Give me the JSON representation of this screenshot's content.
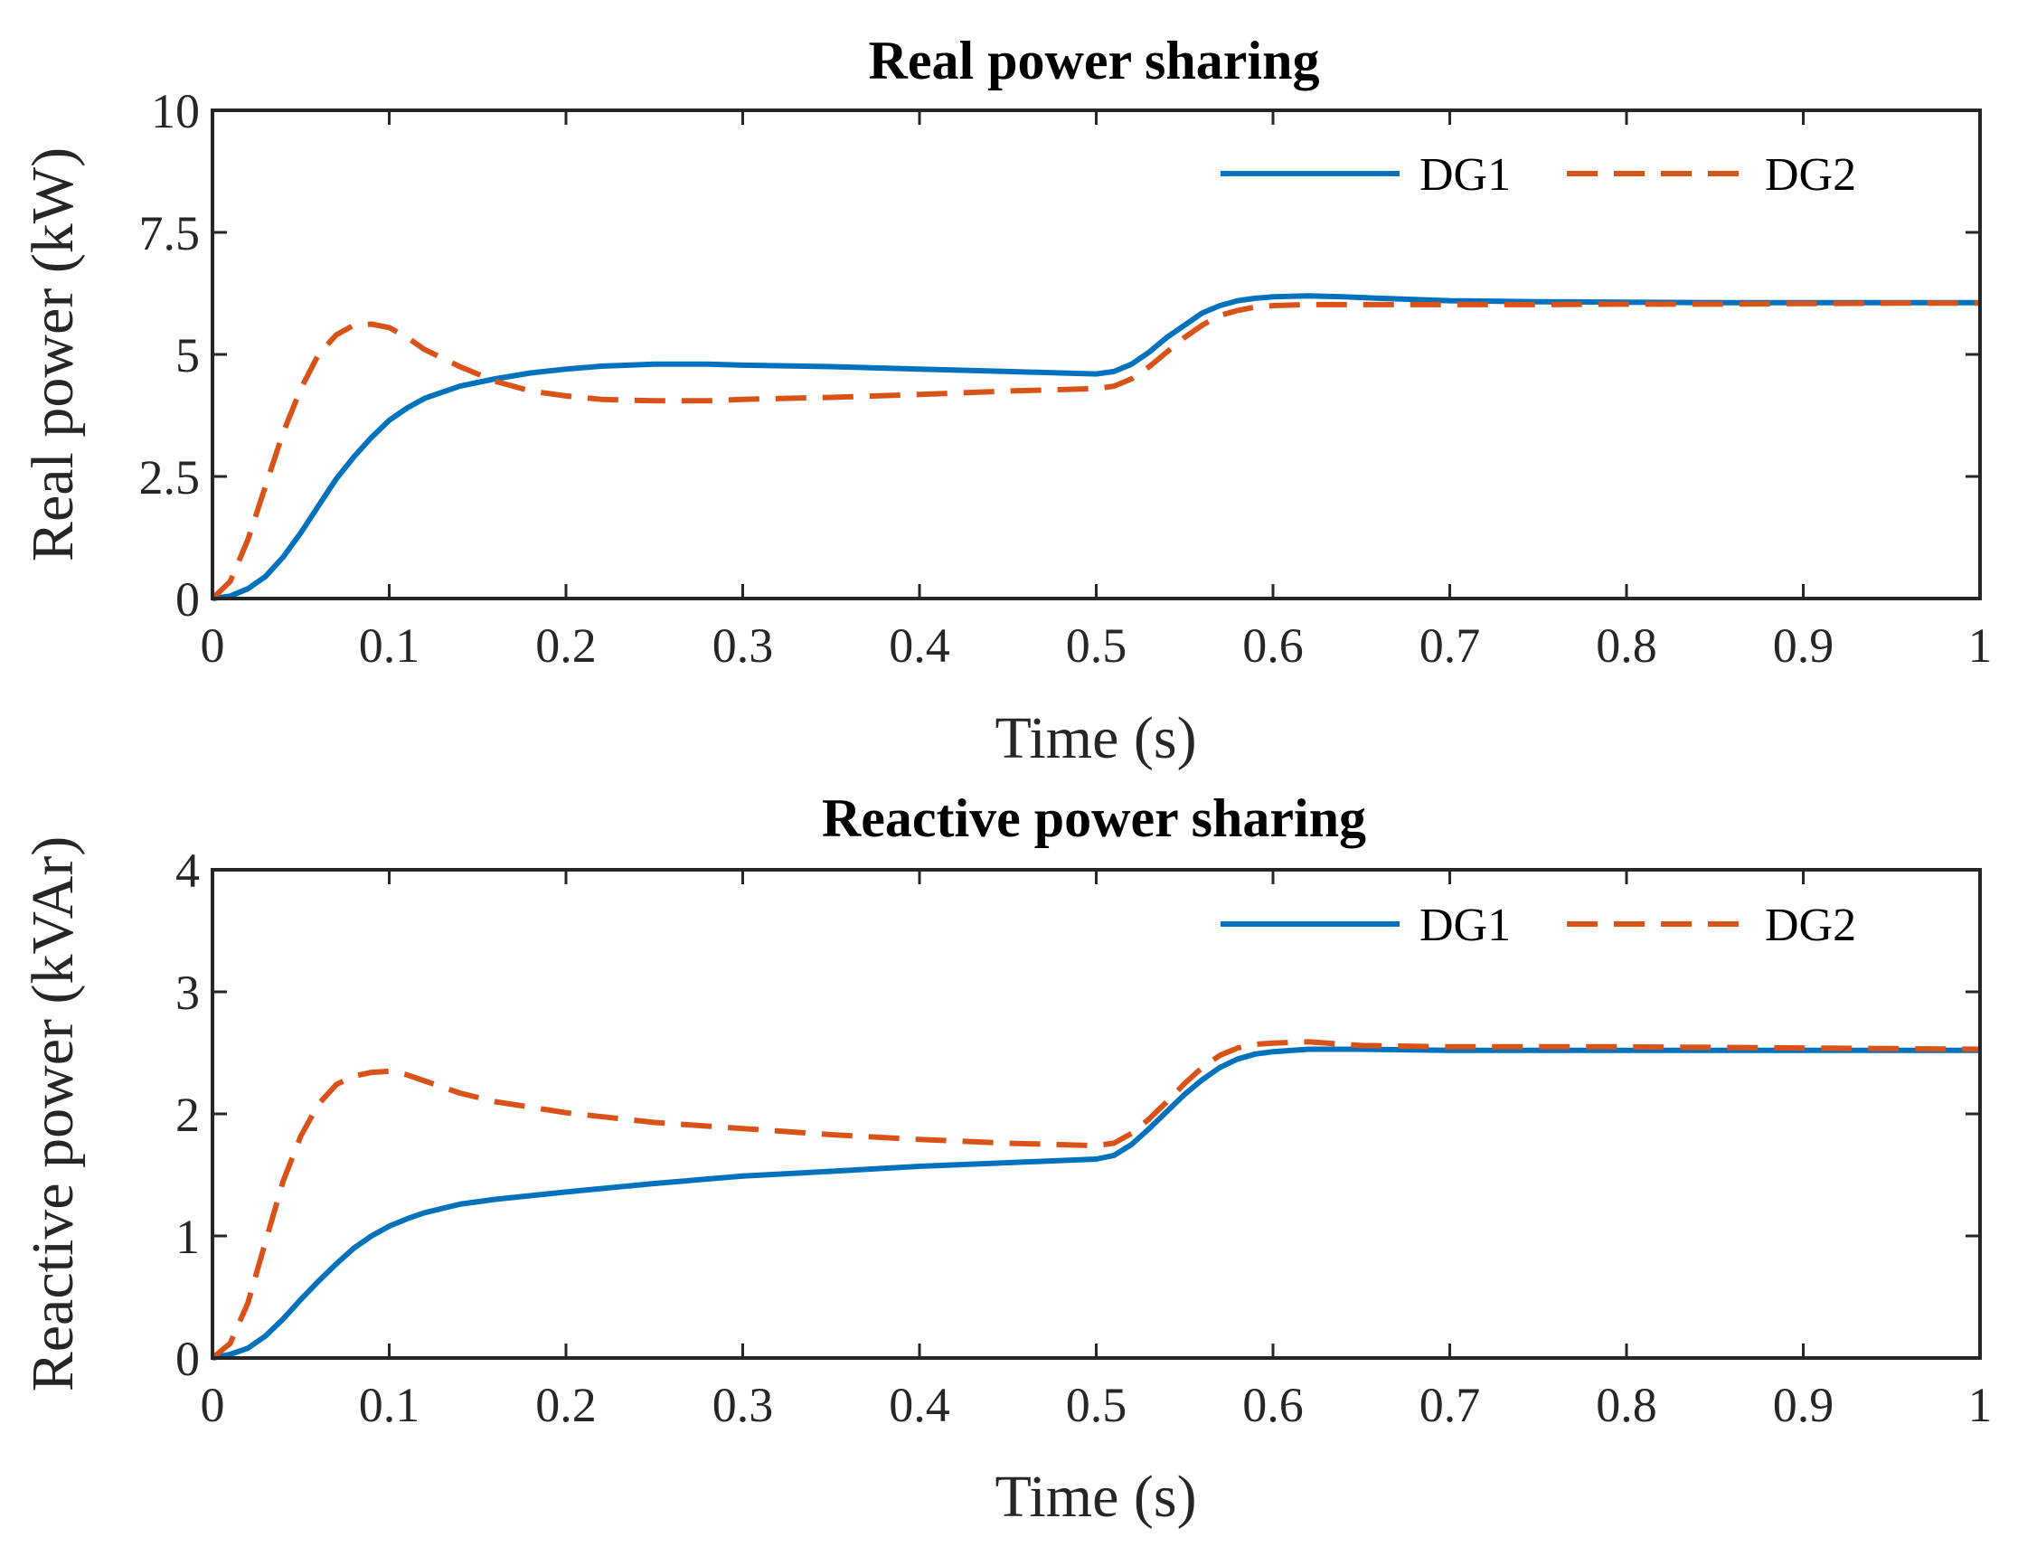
{
  "chart_data": [
    {
      "type": "line",
      "title": "Real power sharing",
      "xlabel": "Time (s)",
      "ylabel": "Real power (kW)",
      "xlim": [
        0,
        1
      ],
      "ylim": [
        0,
        10
      ],
      "xticks": [
        0,
        0.1,
        0.2,
        0.3,
        0.4,
        0.5,
        0.6,
        0.7,
        0.8,
        0.9,
        1
      ],
      "xtick_labels": [
        "0",
        "0.1",
        "0.2",
        "0.3",
        "0.4",
        "0.5",
        "0.6",
        "0.7",
        "0.8",
        "0.9",
        "1"
      ],
      "yticks": [
        0,
        2.5,
        5,
        7.5,
        10
      ],
      "ytick_labels": [
        "0",
        "2.5",
        "5",
        "7.5",
        "10"
      ],
      "grid": false,
      "legend_position": "top-right",
      "series": [
        {
          "name": "DG1",
          "color": "#0072BD",
          "style": "solid",
          "x": [
            0,
            0.01,
            0.02,
            0.03,
            0.04,
            0.05,
            0.06,
            0.07,
            0.08,
            0.09,
            0.1,
            0.11,
            0.12,
            0.14,
            0.16,
            0.18,
            0.2,
            0.22,
            0.25,
            0.28,
            0.3,
            0.35,
            0.4,
            0.45,
            0.5,
            0.51,
            0.52,
            0.53,
            0.54,
            0.55,
            0.56,
            0.57,
            0.58,
            0.59,
            0.6,
            0.62,
            0.64,
            0.66,
            0.7,
            0.75,
            0.8,
            0.85,
            0.9,
            0.95,
            1.0
          ],
          "y": [
            0,
            0.05,
            0.2,
            0.45,
            0.85,
            1.35,
            1.9,
            2.45,
            2.9,
            3.3,
            3.65,
            3.9,
            4.1,
            4.35,
            4.5,
            4.62,
            4.7,
            4.76,
            4.8,
            4.8,
            4.78,
            4.75,
            4.7,
            4.65,
            4.6,
            4.65,
            4.8,
            5.05,
            5.35,
            5.6,
            5.85,
            6.0,
            6.1,
            6.15,
            6.18,
            6.2,
            6.18,
            6.15,
            6.1,
            6.08,
            6.07,
            6.06,
            6.06,
            6.06,
            6.06
          ]
        },
        {
          "name": "DG2",
          "color": "#D95319",
          "style": "dashed",
          "x": [
            0,
            0.01,
            0.02,
            0.03,
            0.04,
            0.05,
            0.06,
            0.07,
            0.08,
            0.09,
            0.1,
            0.11,
            0.12,
            0.14,
            0.16,
            0.18,
            0.2,
            0.22,
            0.25,
            0.28,
            0.3,
            0.35,
            0.4,
            0.45,
            0.5,
            0.51,
            0.52,
            0.53,
            0.54,
            0.55,
            0.56,
            0.57,
            0.58,
            0.59,
            0.6,
            0.62,
            0.64,
            0.66,
            0.7,
            0.75,
            0.8,
            0.85,
            0.9,
            0.95,
            1.0
          ],
          "y": [
            0,
            0.35,
            1.2,
            2.3,
            3.4,
            4.3,
            5.0,
            5.4,
            5.6,
            5.62,
            5.55,
            5.35,
            5.1,
            4.75,
            4.45,
            4.25,
            4.15,
            4.08,
            4.05,
            4.05,
            4.08,
            4.12,
            4.18,
            4.25,
            4.3,
            4.35,
            4.5,
            4.75,
            5.05,
            5.35,
            5.6,
            5.8,
            5.9,
            5.97,
            6.0,
            6.02,
            6.02,
            6.02,
            6.02,
            6.02,
            6.03,
            6.03,
            6.04,
            6.05,
            6.05
          ]
        }
      ]
    },
    {
      "type": "line",
      "title": "Reactive power sharing",
      "xlabel": "Time (s)",
      "ylabel": "Reactive power (kVAr)",
      "xlim": [
        0,
        1
      ],
      "ylim": [
        0,
        4
      ],
      "xticks": [
        0,
        0.1,
        0.2,
        0.3,
        0.4,
        0.5,
        0.6,
        0.7,
        0.8,
        0.9,
        1
      ],
      "xtick_labels": [
        "0",
        "0.1",
        "0.2",
        "0.3",
        "0.4",
        "0.5",
        "0.6",
        "0.7",
        "0.8",
        "0.9",
        "1"
      ],
      "yticks": [
        0,
        1,
        2,
        3,
        4
      ],
      "ytick_labels": [
        "0",
        "1",
        "2",
        "3",
        "4"
      ],
      "grid": false,
      "legend_position": "top-right",
      "series": [
        {
          "name": "DG1",
          "color": "#0072BD",
          "style": "solid",
          "x": [
            0,
            0.01,
            0.02,
            0.03,
            0.04,
            0.05,
            0.06,
            0.07,
            0.08,
            0.09,
            0.1,
            0.11,
            0.12,
            0.14,
            0.16,
            0.2,
            0.25,
            0.3,
            0.35,
            0.4,
            0.45,
            0.5,
            0.51,
            0.52,
            0.53,
            0.54,
            0.55,
            0.56,
            0.57,
            0.58,
            0.59,
            0.6,
            0.62,
            0.65,
            0.7,
            0.8,
            0.9,
            1.0
          ],
          "y": [
            0,
            0.03,
            0.08,
            0.18,
            0.32,
            0.48,
            0.63,
            0.77,
            0.9,
            1.0,
            1.08,
            1.14,
            1.19,
            1.26,
            1.3,
            1.36,
            1.43,
            1.49,
            1.53,
            1.57,
            1.6,
            1.63,
            1.66,
            1.75,
            1.88,
            2.02,
            2.16,
            2.28,
            2.38,
            2.45,
            2.49,
            2.51,
            2.53,
            2.53,
            2.52,
            2.52,
            2.52,
            2.52
          ]
        },
        {
          "name": "DG2",
          "color": "#D95319",
          "style": "dashed",
          "x": [
            0,
            0.01,
            0.02,
            0.03,
            0.04,
            0.05,
            0.06,
            0.07,
            0.08,
            0.09,
            0.1,
            0.11,
            0.12,
            0.14,
            0.16,
            0.2,
            0.25,
            0.3,
            0.35,
            0.4,
            0.45,
            0.5,
            0.51,
            0.52,
            0.53,
            0.54,
            0.55,
            0.56,
            0.57,
            0.58,
            0.59,
            0.6,
            0.62,
            0.65,
            0.7,
            0.8,
            0.9,
            1.0
          ],
          "y": [
            0,
            0.12,
            0.45,
            0.95,
            1.45,
            1.82,
            2.08,
            2.24,
            2.31,
            2.34,
            2.35,
            2.32,
            2.27,
            2.17,
            2.1,
            2.01,
            1.93,
            1.88,
            1.83,
            1.79,
            1.76,
            1.74,
            1.76,
            1.84,
            1.96,
            2.1,
            2.25,
            2.38,
            2.48,
            2.54,
            2.57,
            2.58,
            2.59,
            2.56,
            2.55,
            2.55,
            2.54,
            2.53
          ]
        }
      ]
    }
  ]
}
